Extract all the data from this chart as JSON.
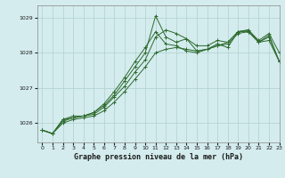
{
  "title": "Graphe pression niveau de la mer (hPa)",
  "bg_color": "#d4ecee",
  "line_color": "#2d6a2d",
  "grid_color": "#b0d0d0",
  "xlim": [
    -0.5,
    23
  ],
  "ylim": [
    1025.45,
    1029.35
  ],
  "yticks": [
    1026,
    1027,
    1028,
    1029
  ],
  "xticks": [
    0,
    1,
    2,
    3,
    4,
    5,
    6,
    7,
    8,
    9,
    10,
    11,
    12,
    13,
    14,
    15,
    16,
    17,
    18,
    19,
    20,
    21,
    22,
    23
  ],
  "series": [
    [
      1025.8,
      1025.7,
      1026.1,
      1026.2,
      1026.2,
      1026.3,
      1026.5,
      1026.8,
      1027.2,
      1027.6,
      1028.0,
      1029.05,
      1028.45,
      1028.3,
      1028.4,
      1028.05,
      1028.1,
      1028.25,
      1028.15,
      1028.6,
      1028.6,
      1028.3,
      1028.35,
      1027.75
    ],
    [
      1025.8,
      1025.7,
      1026.1,
      1026.15,
      1026.2,
      1026.3,
      1026.55,
      1026.9,
      1027.3,
      1027.75,
      1028.15,
      1028.6,
      1028.25,
      1028.2,
      1028.05,
      1028.0,
      1028.1,
      1028.2,
      1028.3,
      1028.6,
      1028.65,
      1028.3,
      1028.5,
      1027.75
    ],
    [
      1025.8,
      1025.7,
      1026.05,
      1026.15,
      1026.2,
      1026.25,
      1026.45,
      1026.75,
      1027.05,
      1027.45,
      1027.8,
      1028.45,
      1028.65,
      1028.55,
      1028.4,
      1028.2,
      1028.2,
      1028.35,
      1028.3,
      1028.6,
      1028.65,
      1028.35,
      1028.55,
      1028.0
    ],
    [
      1025.8,
      1025.7,
      1026.0,
      1026.1,
      1026.15,
      1026.2,
      1026.35,
      1026.6,
      1026.9,
      1027.25,
      1027.6,
      1028.0,
      1028.1,
      1028.15,
      1028.1,
      1028.05,
      1028.1,
      1028.2,
      1028.25,
      1028.55,
      1028.6,
      1028.3,
      1028.45,
      1027.75
    ]
  ]
}
